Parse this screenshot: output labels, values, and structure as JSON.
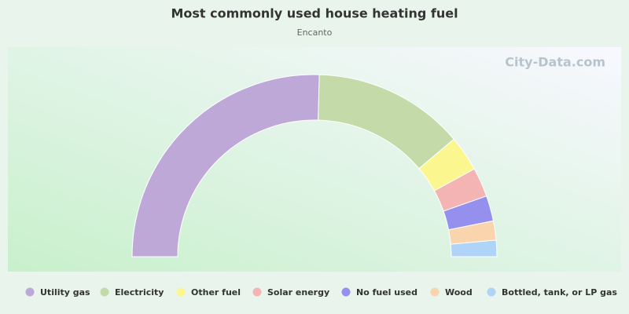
{
  "chart_data": {
    "type": "half-donut",
    "title": "Most commonly used house heating fuel",
    "subtitle": "Encanto",
    "watermark": "City-Data.com",
    "categories": [
      "Utility gas",
      "Electricity",
      "Other fuel",
      "Solar energy",
      "No fuel used",
      "Wood",
      "Bottled, tank, or LP gas"
    ],
    "values": [
      50.8,
      26.8,
      6.3,
      5.2,
      4.5,
      3.4,
      2.9
    ],
    "colors": [
      "#bea8d8",
      "#c4daa8",
      "#fbf78e",
      "#f5b4b4",
      "#9590ee",
      "#fad4ac",
      "#b0d4f8"
    ]
  }
}
